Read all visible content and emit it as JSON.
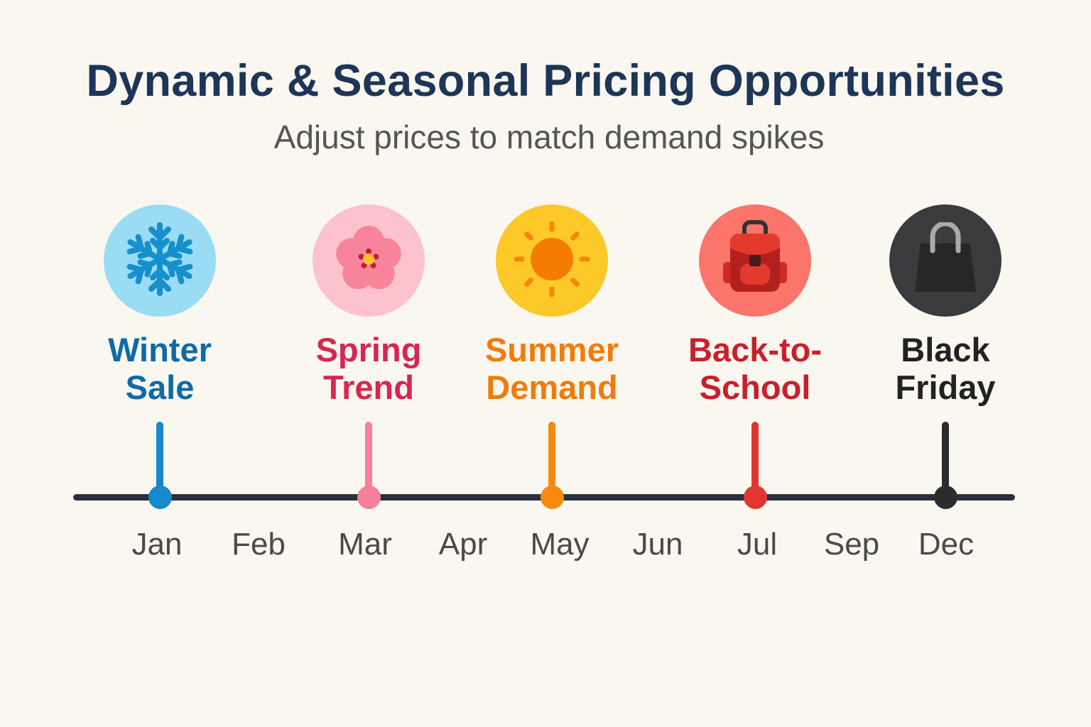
{
  "header": {
    "title": "Dynamic & Seasonal Pricing Opportunities",
    "subtitle": "Adjust prices to match demand spikes"
  },
  "events": [
    {
      "line1": "Winter",
      "line2": "Sale",
      "icon": "snowflake-icon",
      "month": "Jan",
      "label_color": "#0f6aa6",
      "circle_color": "#9bdcf5",
      "marker_color": "#1589c9"
    },
    {
      "line1": "Spring",
      "line2": "Trend",
      "icon": "flower-icon",
      "month": "Mar",
      "label_color": "#d7264f",
      "circle_color": "#fdc3cc",
      "marker_color": "#f87f98"
    },
    {
      "line1": "Summer",
      "line2": "Demand",
      "icon": "sun-icon",
      "month": "May",
      "label_color": "#f27b0a",
      "circle_color": "#fdc928",
      "marker_color": "#f68a0c"
    },
    {
      "line1": "Back-to-",
      "line2": "School",
      "icon": "backpack-icon",
      "month": "Jul",
      "label_color": "#c8202b",
      "circle_color": "#fb756b",
      "marker_color": "#e3352f"
    },
    {
      "line1": "Black",
      "line2": "Friday",
      "icon": "shopping-bag-icon",
      "month": "Dec",
      "label_color": "#222",
      "circle_color": "#3a3b3d",
      "marker_color": "#2b2c2e"
    }
  ],
  "months": [
    "Jan",
    "Feb",
    "Mar",
    "Apr",
    "May",
    "Jun",
    "Jul",
    "Sep",
    "Dec"
  ]
}
